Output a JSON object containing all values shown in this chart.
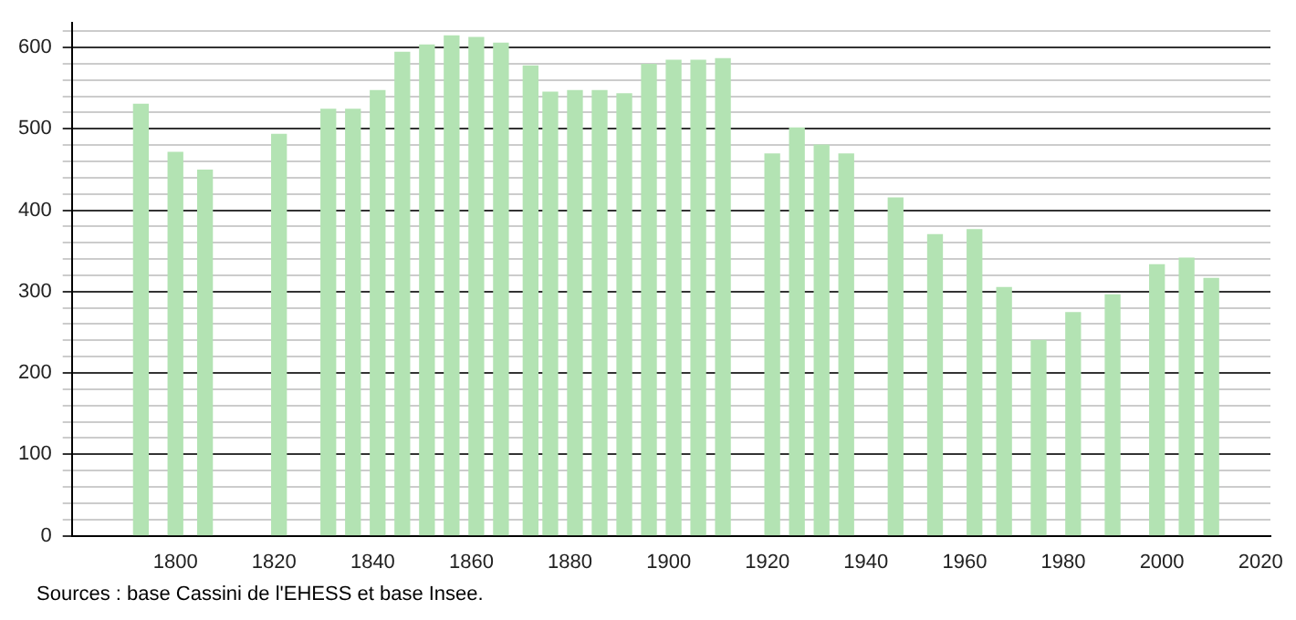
{
  "chart_data": {
    "type": "bar",
    "x": [
      1793,
      1800,
      1806,
      1821,
      1831,
      1836,
      1841,
      1846,
      1851,
      1856,
      1861,
      1866,
      1872,
      1876,
      1881,
      1886,
      1891,
      1896,
      1901,
      1906,
      1911,
      1921,
      1926,
      1931,
      1936,
      1946,
      1954,
      1962,
      1968,
      1975,
      1982,
      1990,
      1999,
      2005,
      2010
    ],
    "values": [
      530,
      471,
      449,
      493,
      524,
      524,
      547,
      594,
      603,
      614,
      612,
      605,
      577,
      545,
      547,
      547,
      543,
      579,
      584,
      584,
      586,
      469,
      501,
      480,
      469,
      415,
      370,
      376,
      305,
      240,
      274,
      296,
      333,
      341,
      316
    ],
    "color": "#b3e3b3",
    "xlim": [
      1779,
      2022
    ],
    "xticks": [
      1800,
      1820,
      1840,
      1860,
      1880,
      1900,
      1920,
      1940,
      1960,
      1980,
      2000,
      2020
    ],
    "ylim": [
      0,
      630
    ],
    "yticks": [
      0,
      {
        "value": 20,
        "label": null
      },
      {
        "value": 40,
        "label": null
      },
      {
        "value": 60,
        "label": null
      },
      {
        "value": 80,
        "label": null
      },
      100,
      {
        "value": 120,
        "label": null
      },
      {
        "value": 140,
        "label": null
      },
      {
        "value": 160,
        "label": null
      },
      {
        "value": 180,
        "label": null
      },
      200,
      {
        "value": 220,
        "label": null
      },
      {
        "value": 240,
        "label": null
      },
      {
        "value": 260,
        "label": null
      },
      {
        "value": 280,
        "label": null
      },
      300,
      {
        "value": 320,
        "label": null
      },
      {
        "value": 340,
        "label": null
      },
      {
        "value": 360,
        "label": null
      },
      {
        "value": 380,
        "label": null
      },
      400,
      {
        "value": 420,
        "label": null
      },
      {
        "value": 440,
        "label": null
      },
      {
        "value": 460,
        "label": null
      },
      {
        "value": 480,
        "label": null
      },
      500,
      {
        "value": 520,
        "label": null
      },
      {
        "value": 540,
        "label": null
      },
      {
        "value": 560,
        "label": null
      },
      {
        "value": 580,
        "label": null
      },
      600,
      {
        "value": 620,
        "label": null
      }
    ],
    "grid": "y",
    "legend": false,
    "annotations": [
      "Sources : base Cassini de l'EHESS et base Insee."
    ]
  }
}
